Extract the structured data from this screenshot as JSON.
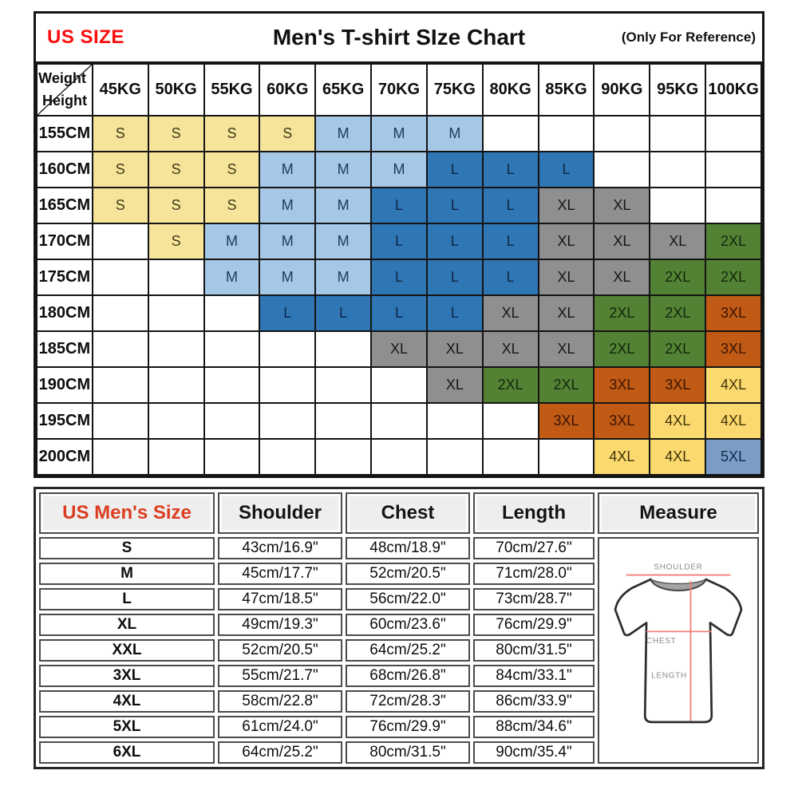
{
  "header": {
    "left_label": "US SIZE",
    "title": "Men's T-shirt SIze Chart",
    "right_note": "(Only For Reference)"
  },
  "chart_data": [
    {
      "type": "table",
      "title": "Men's T-shirt SIze Chart",
      "corner": {
        "top": "Weight",
        "bottom": "Height"
      },
      "columns": [
        "45KG",
        "50KG",
        "55KG",
        "60KG",
        "65KG",
        "70KG",
        "75KG",
        "80KG",
        "85KG",
        "90KG",
        "95KG",
        "100KG"
      ],
      "rows": [
        {
          "height": "155CM",
          "cells": [
            "S",
            "S",
            "S",
            "S",
            "M",
            "M",
            "M",
            "",
            "",
            "",
            "",
            ""
          ]
        },
        {
          "height": "160CM",
          "cells": [
            "S",
            "S",
            "S",
            "M",
            "M",
            "M",
            "L",
            "L",
            "L",
            "",
            "",
            ""
          ]
        },
        {
          "height": "165CM",
          "cells": [
            "S",
            "S",
            "S",
            "M",
            "M",
            "L",
            "L",
            "L",
            "XL",
            "XL",
            "",
            ""
          ]
        },
        {
          "height": "170CM",
          "cells": [
            "",
            "S",
            "M",
            "M",
            "M",
            "L",
            "L",
            "L",
            "XL",
            "XL",
            "XL",
            "2XL"
          ]
        },
        {
          "height": "175CM",
          "cells": [
            "",
            "",
            "M",
            "M",
            "M",
            "L",
            "L",
            "L",
            "XL",
            "XL",
            "2XL",
            "2XL"
          ]
        },
        {
          "height": "180CM",
          "cells": [
            "",
            "",
            "",
            "L",
            "L",
            "L",
            "L",
            "XL",
            "XL",
            "2XL",
            "2XL",
            "3XL"
          ]
        },
        {
          "height": "185CM",
          "cells": [
            "",
            "",
            "",
            "",
            "",
            "XL",
            "XL",
            "XL",
            "XL",
            "2XL",
            "2XL",
            "3XL"
          ]
        },
        {
          "height": "190CM",
          "cells": [
            "",
            "",
            "",
            "",
            "",
            "",
            "XL",
            "2XL",
            "2XL",
            "3XL",
            "3XL",
            "4XL"
          ]
        },
        {
          "height": "195CM",
          "cells": [
            "",
            "",
            "",
            "",
            "",
            "",
            "",
            "",
            "3XL",
            "3XL",
            "4XL",
            "4XL"
          ]
        },
        {
          "height": "200CM",
          "cells": [
            "",
            "",
            "",
            "",
            "",
            "",
            "",
            "",
            "",
            "4XL",
            "4XL",
            "5XL"
          ]
        }
      ],
      "size_fill_colors": {
        "S": "#F7E49B",
        "M": "#A5C8E6",
        "L": "#2F76B5",
        "XL": "#8F8F8F",
        "2XL": "#548235",
        "3XL": "#C05A14",
        "4XL": "#FAD96E",
        "5XL": "#7B9CC4"
      },
      "size_text_colors": {
        "S": "#3f3a18",
        "M": "#1e3a5a",
        "L": "#0d2746",
        "XL": "#161616",
        "2XL": "#10270b",
        "3XL": "#3a1405",
        "4XL": "#423306",
        "5XL": "#16294a"
      }
    },
    {
      "type": "table",
      "columns": [
        "US Men's Size",
        "Shoulder",
        "Chest",
        "Length",
        "Measure"
      ],
      "rows": [
        {
          "size": "S",
          "shoulder": "43cm/16.9\"",
          "chest": "48cm/18.9\"",
          "length": "70cm/27.6\""
        },
        {
          "size": "M",
          "shoulder": "45cm/17.7\"",
          "chest": "52cm/20.5\"",
          "length": "71cm/28.0\""
        },
        {
          "size": "L",
          "shoulder": "47cm/18.5\"",
          "chest": "56cm/22.0\"",
          "length": "73cm/28.7\""
        },
        {
          "size": "XL",
          "shoulder": "49cm/19.3\"",
          "chest": "60cm/23.6\"",
          "length": "76cm/29.9\""
        },
        {
          "size": "XXL",
          "shoulder": "52cm/20.5\"",
          "chest": "64cm/25.2\"",
          "length": "80cm/31.5\""
        },
        {
          "size": "3XL",
          "shoulder": "55cm/21.7\"",
          "chest": "68cm/26.8\"",
          "length": "84cm/33.1\""
        },
        {
          "size": "4XL",
          "shoulder": "58cm/22.8\"",
          "chest": "72cm/28.3\"",
          "length": "86cm/33.9\""
        },
        {
          "size": "5XL",
          "shoulder": "61cm/24.0\"",
          "chest": "76cm/29.9\"",
          "length": "88cm/34.6\""
        },
        {
          "size": "6XL",
          "shoulder": "64cm/25.2\"",
          "chest": "80cm/31.5\"",
          "length": "90cm/35.4\""
        }
      ]
    }
  ],
  "diagram": {
    "shoulder_label": "SHOULDER",
    "chest_label": "CHEST",
    "length_label": "LENGTH",
    "line_color": "#ef8277",
    "label_color": "#8c8c8c",
    "collar_color": "#a3a3a3"
  },
  "ui_colors": {
    "us_size_red": "#fb0d0d",
    "us_mens_size_red": "#dc3d20",
    "grid_border": "#141414",
    "bottom_border": "#4b4b4b",
    "header_cell_bg": "#eeeeee"
  }
}
